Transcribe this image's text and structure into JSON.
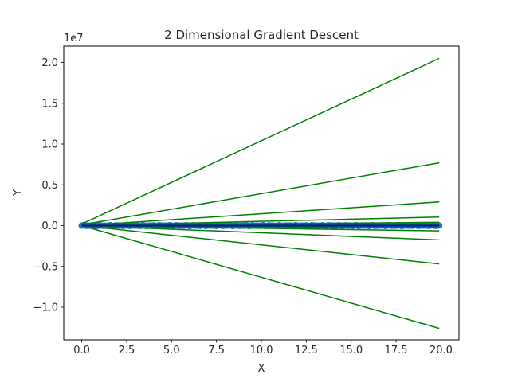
{
  "chart_data": {
    "type": "line",
    "title": "2 Dimensional Gradient Descent",
    "xlabel": "X",
    "ylabel": "Y",
    "y_offset_label": "1e7",
    "y_scale": 10000000,
    "xlim": [
      -1.0,
      21.0
    ],
    "ylim": [
      -1.4,
      2.2
    ],
    "x_ticks": [
      0.0,
      2.5,
      5.0,
      7.5,
      10.0,
      12.5,
      15.0,
      17.5,
      20.0
    ],
    "x_tick_labels": [
      "0.0",
      "2.5",
      "5.0",
      "7.5",
      "10.0",
      "12.5",
      "15.0",
      "17.5",
      "20.0"
    ],
    "y_ticks": [
      -1.0,
      -0.5,
      0.0,
      0.5,
      1.0,
      1.5,
      2.0
    ],
    "y_tick_labels": [
      "−1.0",
      "−0.5",
      "0.0",
      "0.5",
      "1.0",
      "1.5",
      "2.0"
    ],
    "grid": false,
    "legend": "none",
    "colors": {
      "points": "#1f77b4",
      "fit_lines": "#008000",
      "final_line": "#0000ff",
      "axes": "#000000"
    },
    "scatter": {
      "x_range": [
        0,
        19.9
      ],
      "count": 200,
      "y_value": 0.0,
      "jitter_amplitude": 0.006
    },
    "series": [
      {
        "x": [
          0.0,
          19.9
        ],
        "y": [
          0.02,
          2.05
        ]
      },
      {
        "x": [
          0.0,
          19.9
        ],
        "y": [
          0.01,
          0.77
        ]
      },
      {
        "x": [
          0.0,
          19.9
        ],
        "y": [
          0.0,
          0.29
        ]
      },
      {
        "x": [
          0.0,
          19.9
        ],
        "y": [
          0.0,
          0.105
        ]
      },
      {
        "x": [
          0.0,
          19.9
        ],
        "y": [
          0.0,
          0.04
        ]
      },
      {
        "x": [
          0.0,
          19.9
        ],
        "y": [
          0.0,
          0.015
        ]
      },
      {
        "x": [
          0.0,
          19.9
        ],
        "y": [
          0.0,
          -0.006
        ]
      },
      {
        "x": [
          0.0,
          19.9
        ],
        "y": [
          0.0,
          -0.025
        ]
      },
      {
        "x": [
          0.0,
          19.9
        ],
        "y": [
          0.0,
          -0.065
        ]
      },
      {
        "x": [
          0.0,
          19.9
        ],
        "y": [
          0.0,
          -0.175
        ]
      },
      {
        "x": [
          0.0,
          19.9
        ],
        "y": [
          0.0,
          -0.47
        ]
      },
      {
        "x": [
          0.0,
          19.9
        ],
        "y": [
          0.0,
          -1.26
        ]
      }
    ],
    "final_series": {
      "x": [
        0.0,
        19.9
      ],
      "y": [
        0.0,
        0.0
      ]
    }
  }
}
